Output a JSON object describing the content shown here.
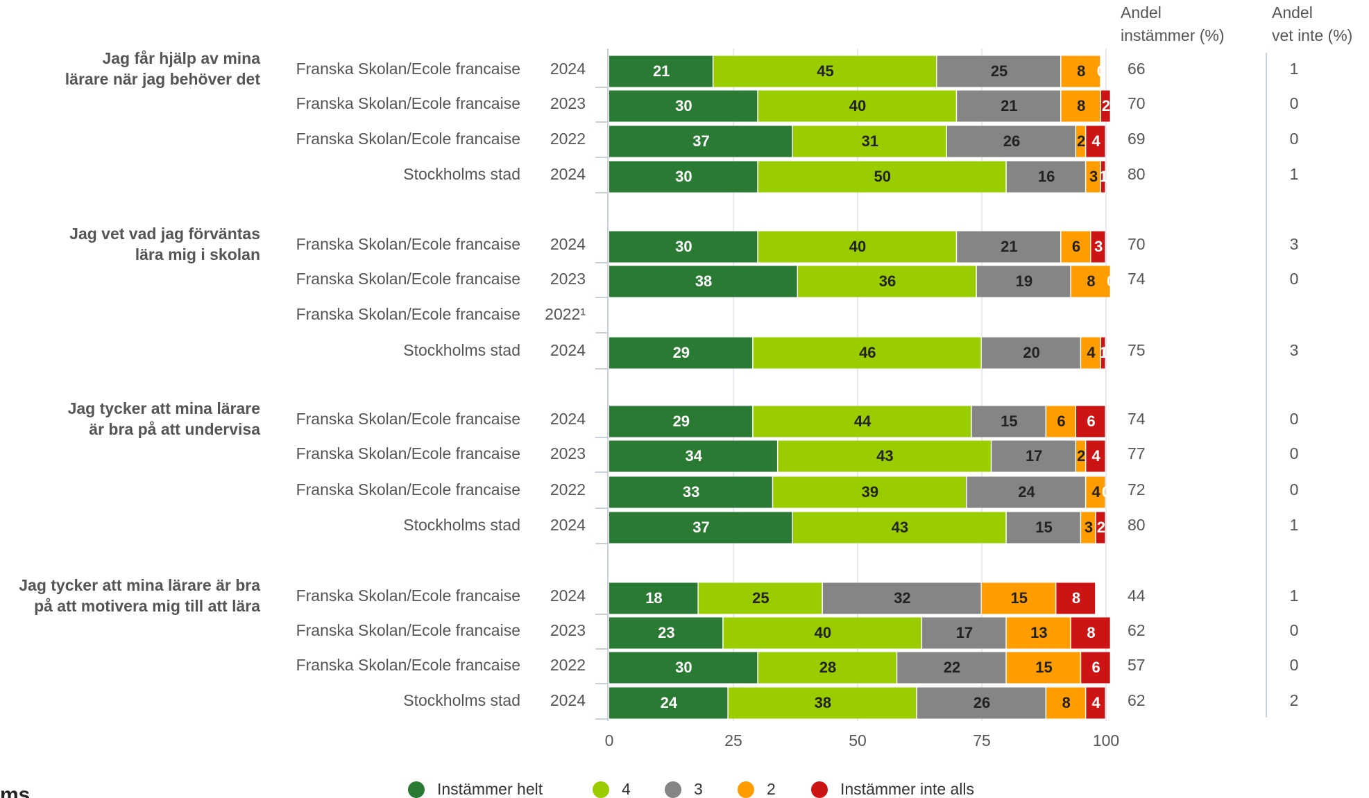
{
  "chart_data": {
    "type": "stacked-bar-horizontal",
    "agree_header": [
      "Andel",
      "instämmer (%)"
    ],
    "dont_know_header": [
      "Andel",
      "vet inte (%)"
    ],
    "series": [
      {
        "name": "Instämmer helt",
        "color": "#2b7a34",
        "label_color": "#ffffff"
      },
      {
        "name": "4",
        "color": "#9acd00",
        "label_color": "#222222"
      },
      {
        "name": "3",
        "color": "#858585",
        "label_color": "#222222"
      },
      {
        "name": "2",
        "color": "#ff9c00",
        "label_color": "#222222"
      },
      {
        "name": "Instämmer inte alls",
        "color": "#cc1414",
        "label_color": "#ffffff"
      }
    ],
    "groups": [
      {
        "question": [
          "Jag får hjälp av mina",
          "lärare när jag behöver det"
        ],
        "rows": [
          {
            "unit": "Franska Skolan/Ecole francaise",
            "year": "2024",
            "values": [
              21,
              45,
              25,
              8,
              0
            ],
            "agree": 66,
            "dont_know": 1
          },
          {
            "unit": "Franska Skolan/Ecole francaise",
            "year": "2023",
            "values": [
              30,
              40,
              21,
              8,
              2
            ],
            "agree": 70,
            "dont_know": 0
          },
          {
            "unit": "Franska Skolan/Ecole francaise",
            "year": "2022",
            "values": [
              37,
              31,
              26,
              2,
              4
            ],
            "agree": 69,
            "dont_know": 0
          },
          {
            "unit": "Stockholms stad",
            "year": "2024",
            "values": [
              30,
              50,
              16,
              3,
              1
            ],
            "agree": 80,
            "dont_know": 1
          }
        ]
      },
      {
        "question": [
          "Jag vet vad jag förväntas",
          "lära mig i skolan"
        ],
        "rows": [
          {
            "unit": "Franska Skolan/Ecole francaise",
            "year": "2024",
            "values": [
              30,
              40,
              21,
              6,
              3
            ],
            "agree": 70,
            "dont_know": 3
          },
          {
            "unit": "Franska Skolan/Ecole francaise",
            "year": "2023",
            "values": [
              38,
              36,
              19,
              8,
              0
            ],
            "agree": 74,
            "dont_know": 0
          },
          {
            "unit": "Franska Skolan/Ecole francaise",
            "year": "2022¹"
          },
          {
            "unit": "Stockholms stad",
            "year": "2024",
            "values": [
              29,
              46,
              20,
              4,
              1
            ],
            "agree": 75,
            "dont_know": 3
          }
        ]
      },
      {
        "question": [
          "Jag tycker att mina lärare",
          "är bra på att undervisa"
        ],
        "rows": [
          {
            "unit": "Franska Skolan/Ecole francaise",
            "year": "2024",
            "values": [
              29,
              44,
              15,
              6,
              6
            ],
            "agree": 74,
            "dont_know": 0
          },
          {
            "unit": "Franska Skolan/Ecole francaise",
            "year": "2023",
            "values": [
              34,
              43,
              17,
              2,
              4
            ],
            "agree": 77,
            "dont_know": 0
          },
          {
            "unit": "Franska Skolan/Ecole francaise",
            "year": "2022",
            "values": [
              33,
              39,
              24,
              4,
              0
            ],
            "agree": 72,
            "dont_know": 0
          },
          {
            "unit": "Stockholms stad",
            "year": "2024",
            "values": [
              37,
              43,
              15,
              3,
              2
            ],
            "agree": 80,
            "dont_know": 1
          }
        ]
      },
      {
        "question": [
          "Jag tycker att mina lärare är bra",
          "på att motivera mig till att lära"
        ],
        "rows": [
          {
            "unit": "Franska Skolan/Ecole francaise",
            "year": "2024",
            "values": [
              18,
              25,
              32,
              15,
              8
            ],
            "agree": 44,
            "dont_know": 1
          },
          {
            "unit": "Franska Skolan/Ecole francaise",
            "year": "2023",
            "values": [
              23,
              40,
              17,
              13,
              8
            ],
            "agree": 62,
            "dont_know": 0
          },
          {
            "unit": "Franska Skolan/Ecole francaise",
            "year": "2022",
            "values": [
              30,
              28,
              22,
              15,
              6
            ],
            "agree": 57,
            "dont_know": 0
          },
          {
            "unit": "Stockholms stad",
            "year": "2024",
            "values": [
              24,
              38,
              26,
              8,
              4
            ],
            "agree": 62,
            "dont_know": 2
          }
        ]
      }
    ],
    "xlim": [
      0,
      100
    ],
    "xticks": [
      0,
      25,
      50,
      75,
      100
    ],
    "grid": true,
    "logo_fragment": "ms"
  }
}
